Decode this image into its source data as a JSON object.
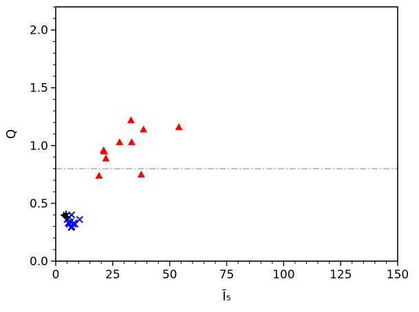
{
  "chart_data": {
    "type": "scatter",
    "title": "",
    "xlabel": "Ī₅",
    "ylabel": "Q",
    "xlim": [
      0,
      150
    ],
    "ylim": [
      0,
      2.2
    ],
    "x_ticks": [
      "0",
      "25",
      "50",
      "75",
      "100",
      "125",
      "150"
    ],
    "y_ticks": [
      "0.0",
      "0.5",
      "1.0",
      "1.5",
      "2.0"
    ],
    "grid": false,
    "legend": "none",
    "reference_line": {
      "y": 0.8,
      "style": "dash-dot",
      "color": "#a9a9a9"
    },
    "series": [
      {
        "marker": "triangle",
        "color": "#ff0000",
        "points": [
          [
            19.0,
            0.74
          ],
          [
            21.0,
            0.96
          ],
          [
            21.3,
            0.95
          ],
          [
            22.0,
            0.89
          ],
          [
            28.0,
            1.03
          ],
          [
            33.0,
            1.22
          ],
          [
            33.3,
            1.03
          ],
          [
            37.5,
            0.75
          ],
          [
            38.5,
            1.14
          ],
          [
            54.0,
            1.16
          ]
        ]
      },
      {
        "marker": "x",
        "color": "#0000ff",
        "points": [
          [
            5.0,
            0.36
          ],
          [
            5.5,
            0.33
          ],
          [
            6.0,
            0.32
          ],
          [
            6.5,
            0.34
          ],
          [
            7.0,
            0.3
          ],
          [
            7.0,
            0.4
          ],
          [
            7.5,
            0.32
          ],
          [
            8.0,
            0.33
          ],
          [
            8.5,
            0.32
          ],
          [
            10.5,
            0.36
          ],
          [
            6.8,
            0.29
          ],
          [
            5.8,
            0.38
          ]
        ]
      },
      {
        "marker": "plus",
        "color": "#000000",
        "points": [
          [
            3.5,
            0.4
          ],
          [
            4.0,
            0.39
          ],
          [
            4.5,
            0.41
          ],
          [
            5.0,
            0.38
          ]
        ]
      }
    ]
  }
}
